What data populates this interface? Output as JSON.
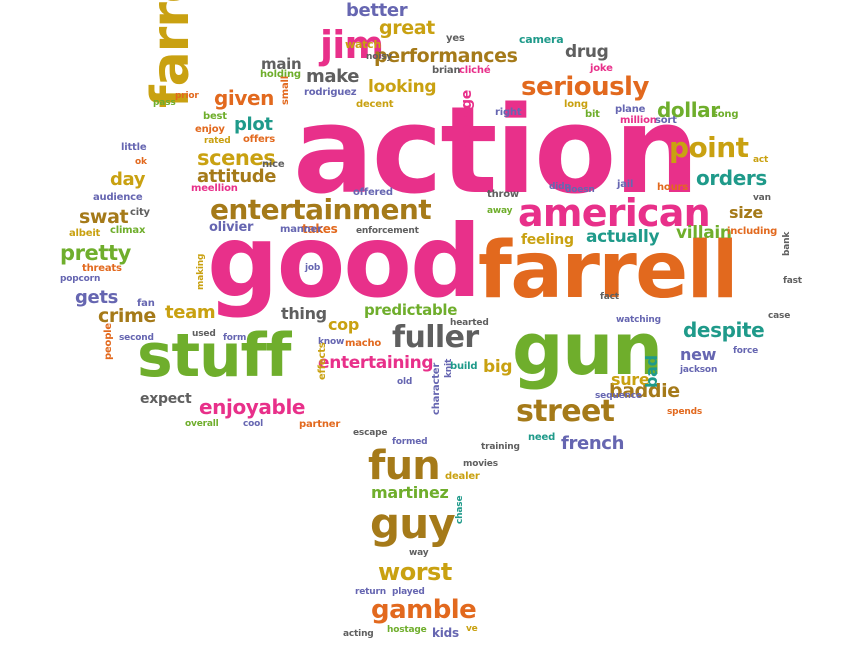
{
  "palette": {
    "pink": "#e8308a",
    "orange": "#e2691e",
    "green": "#6fae2c",
    "gold": "#c9a111",
    "brown": "#a57a19",
    "teal": "#1f9a8a",
    "purple": "#6666b1",
    "gray": "#5f5f5f"
  },
  "words": [
    {
      "text": "action",
      "color": "pink"
    },
    {
      "text": "good",
      "color": "pink"
    },
    {
      "text": "farrell",
      "color": "orange"
    },
    {
      "text": "gun",
      "color": "green"
    },
    {
      "text": "stuff",
      "color": "green"
    },
    {
      "text": "farrel",
      "color": "gold"
    },
    {
      "text": "american",
      "color": "pink"
    },
    {
      "text": "entertainment",
      "color": "brown"
    },
    {
      "text": "fun",
      "color": "brown"
    },
    {
      "text": "guy",
      "color": "brown"
    },
    {
      "text": "street",
      "color": "brown"
    },
    {
      "text": "jim",
      "color": "pink"
    },
    {
      "text": "fuller",
      "color": "gray"
    },
    {
      "text": "seriously",
      "color": "orange"
    },
    {
      "text": "gamble",
      "color": "orange"
    },
    {
      "text": "worst",
      "color": "gold"
    },
    {
      "text": "point",
      "color": "gold"
    },
    {
      "text": "performances",
      "color": "brown"
    },
    {
      "text": "scenes",
      "color": "gold"
    },
    {
      "text": "despite",
      "color": "teal"
    },
    {
      "text": "enjoyable",
      "color": "pink"
    },
    {
      "text": "orders",
      "color": "teal"
    },
    {
      "text": "dollar",
      "color": "green"
    },
    {
      "text": "given",
      "color": "orange"
    },
    {
      "text": "crime",
      "color": "brown"
    },
    {
      "text": "team",
      "color": "gold"
    },
    {
      "text": "pretty",
      "color": "green"
    },
    {
      "text": "attitude",
      "color": "brown"
    },
    {
      "text": "baddie",
      "color": "brown"
    },
    {
      "text": "sure",
      "color": "gold"
    },
    {
      "text": "french",
      "color": "purple"
    },
    {
      "text": "martinez",
      "color": "green"
    },
    {
      "text": "entertaining",
      "color": "pink"
    },
    {
      "text": "predictable",
      "color": "green"
    },
    {
      "text": "actually",
      "color": "teal"
    },
    {
      "text": "villain",
      "color": "green"
    },
    {
      "text": "feeling",
      "color": "gold"
    },
    {
      "text": "great",
      "color": "gold"
    },
    {
      "text": "better",
      "color": "purple"
    },
    {
      "text": "looking",
      "color": "gold"
    },
    {
      "text": "make",
      "color": "gray"
    },
    {
      "text": "drug",
      "color": "gray"
    },
    {
      "text": "main",
      "color": "gray"
    },
    {
      "text": "plot",
      "color": "teal"
    },
    {
      "text": "day",
      "color": "gold"
    },
    {
      "text": "swat",
      "color": "brown"
    },
    {
      "text": "gets",
      "color": "purple"
    },
    {
      "text": "thing",
      "color": "gray"
    },
    {
      "text": "cop",
      "color": "gold"
    },
    {
      "text": "big",
      "color": "gold"
    },
    {
      "text": "new",
      "color": "purple"
    },
    {
      "text": "size",
      "color": "brown"
    },
    {
      "text": "bad",
      "color": "teal"
    },
    {
      "text": "expect",
      "color": "gray"
    },
    {
      "text": "average",
      "color": "pink"
    },
    {
      "text": "olivier",
      "color": "purple"
    },
    {
      "text": "takes",
      "color": "orange"
    },
    {
      "text": "camera",
      "color": "teal"
    },
    {
      "text": "yes",
      "color": "gray"
    },
    {
      "text": "watch",
      "color": "gold"
    },
    {
      "text": "noisy",
      "color": "gray"
    },
    {
      "text": "holding",
      "color": "green"
    },
    {
      "text": "brian",
      "color": "gray"
    },
    {
      "text": "cliché",
      "color": "pink"
    },
    {
      "text": "joke",
      "color": "pink"
    },
    {
      "text": "rodriguez",
      "color": "purple"
    },
    {
      "text": "small",
      "color": "orange"
    },
    {
      "text": "pass",
      "color": "green"
    },
    {
      "text": "prior",
      "color": "orange"
    },
    {
      "text": "decent",
      "color": "gold"
    },
    {
      "text": "right",
      "color": "purple"
    },
    {
      "text": "long",
      "color": "gold"
    },
    {
      "text": "bit",
      "color": "green"
    },
    {
      "text": "plane",
      "color": "purple"
    },
    {
      "text": "million",
      "color": "pink"
    },
    {
      "text": "sort",
      "color": "purple"
    },
    {
      "text": "song",
      "color": "green"
    },
    {
      "text": "best",
      "color": "green"
    },
    {
      "text": "enjoy",
      "color": "orange"
    },
    {
      "text": "rated",
      "color": "gold"
    },
    {
      "text": "offers",
      "color": "orange"
    },
    {
      "text": "little",
      "color": "purple"
    },
    {
      "text": "ok",
      "color": "orange"
    },
    {
      "text": "nice",
      "color": "gray"
    },
    {
      "text": "meellion",
      "color": "pink"
    },
    {
      "text": "audience",
      "color": "purple"
    },
    {
      "text": "offered",
      "color": "purple"
    },
    {
      "text": "city",
      "color": "gray"
    },
    {
      "text": "albeit",
      "color": "gold"
    },
    {
      "text": "climax",
      "color": "green"
    },
    {
      "text": "manner",
      "color": "purple"
    },
    {
      "text": "enforcement",
      "color": "gray"
    },
    {
      "text": "threats",
      "color": "orange"
    },
    {
      "text": "popcorn",
      "color": "purple"
    },
    {
      "text": "job",
      "color": "purple"
    },
    {
      "text": "fan",
      "color": "purple"
    },
    {
      "text": "making",
      "color": "gold"
    },
    {
      "text": "second",
      "color": "purple"
    },
    {
      "text": "used",
      "color": "gray"
    },
    {
      "text": "form",
      "color": "purple"
    },
    {
      "text": "people",
      "color": "orange"
    },
    {
      "text": "know",
      "color": "purple"
    },
    {
      "text": "macho",
      "color": "orange"
    },
    {
      "text": "hearted",
      "color": "gray"
    },
    {
      "text": "old",
      "color": "purple"
    },
    {
      "text": "effects",
      "color": "gold"
    },
    {
      "text": "build",
      "color": "teal"
    },
    {
      "text": "knit",
      "color": "purple"
    },
    {
      "text": "overall",
      "color": "green"
    },
    {
      "text": "cool",
      "color": "purple"
    },
    {
      "text": "partner",
      "color": "orange"
    },
    {
      "text": "escape",
      "color": "gray"
    },
    {
      "text": "character",
      "color": "purple"
    },
    {
      "text": "formed",
      "color": "purple"
    },
    {
      "text": "training",
      "color": "gray"
    },
    {
      "text": "movies",
      "color": "gray"
    },
    {
      "text": "dealer",
      "color": "gold"
    },
    {
      "text": "chase",
      "color": "teal"
    },
    {
      "text": "way",
      "color": "gray"
    },
    {
      "text": "return",
      "color": "purple"
    },
    {
      "text": "played",
      "color": "purple"
    },
    {
      "text": "acting",
      "color": "gray"
    },
    {
      "text": "hostage",
      "color": "green"
    },
    {
      "text": "kids",
      "color": "purple"
    },
    {
      "text": "ve",
      "color": "gold"
    },
    {
      "text": "throw",
      "color": "gray"
    },
    {
      "text": "away",
      "color": "green"
    },
    {
      "text": "didn",
      "color": "purple"
    },
    {
      "text": "doesn",
      "color": "purple"
    },
    {
      "text": "jail",
      "color": "purple"
    },
    {
      "text": "hours",
      "color": "orange"
    },
    {
      "text": "act",
      "color": "gold"
    },
    {
      "text": "van",
      "color": "gray"
    },
    {
      "text": "including",
      "color": "orange"
    },
    {
      "text": "bank",
      "color": "gray"
    },
    {
      "text": "fast",
      "color": "gray"
    },
    {
      "text": "fact",
      "color": "gray"
    },
    {
      "text": "case",
      "color": "gray"
    },
    {
      "text": "watching",
      "color": "purple"
    },
    {
      "text": "jackson",
      "color": "purple"
    },
    {
      "text": "force",
      "color": "purple"
    },
    {
      "text": "sequence",
      "color": "purple"
    },
    {
      "text": "spends",
      "color": "orange"
    },
    {
      "text": "need",
      "color": "teal"
    }
  ]
}
